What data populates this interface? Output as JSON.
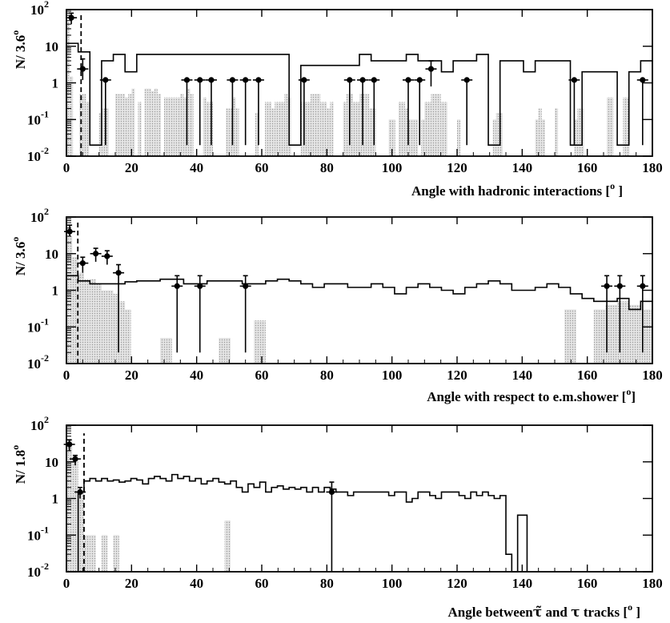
{
  "chart_data": [
    {
      "type": "histogram",
      "panel": "top",
      "ylabel": "N/ 3.6",
      "ylabel_superscript": "o",
      "xlabel": "Angle with hadronic interactions [",
      "xlabel_superscript": "o",
      "xlabel_end": " ]",
      "xlim": [
        0,
        180
      ],
      "ylim": [
        0.01,
        100
      ],
      "yscale": "log",
      "xticks": [
        "0",
        "20",
        "40",
        "60",
        "80",
        "100",
        "120",
        "140",
        "160",
        "180"
      ],
      "yticks": [
        {
          "base": "10",
          "exp": "-2",
          "value": 0.01
        },
        {
          "base": "10",
          "exp": "-1",
          "value": 0.1
        },
        {
          "base": "1",
          "exp": "",
          "value": 1
        },
        {
          "base": "10",
          "exp": "",
          "value": 10
        },
        {
          "base": "10",
          "exp": "2",
          "value": 100
        }
      ],
      "bin_width": 3.6,
      "cut_line_x": 4.5,
      "cut_line_top": 80,
      "series": [
        {
          "role": "shaded histogram",
          "values": [
            45,
            1.5,
            0,
            0,
            0.5,
            0.5,
            0.3,
            0,
            0,
            0,
            0.15,
            0.2,
            0.2,
            0,
            0,
            0.5,
            0.5,
            0.5,
            0.4,
            0.5,
            0.7,
            0,
            0.3,
            0,
            0.7,
            0.7,
            0.6,
            0.7,
            0.5,
            0,
            0.4,
            0.4,
            0.4,
            0.4,
            0.4,
            0.5,
            0.4,
            0.7,
            0.5,
            0,
            0,
            0,
            0.4,
            0.3,
            0.3,
            0,
            0,
            0,
            0,
            0.2,
            0.2,
            0.4,
            0.2,
            0,
            0,
            0,
            0,
            0,
            0.15,
            0,
            0,
            0.3,
            0.3,
            0.2,
            0.3,
            0.3,
            0.3,
            0.5,
            0.4,
            0,
            0,
            0,
            0.3,
            0.3,
            0.3,
            0.5,
            0.5,
            0.5,
            0.3,
            0.3,
            0.2,
            0.3,
            0,
            0,
            0,
            0.3,
            0.5,
            0.5,
            0.3,
            0.3,
            0.5,
            0.5,
            0.5,
            0.2,
            0.2,
            0,
            0,
            0,
            0,
            0.1,
            0.1,
            0,
            0.3,
            0.3,
            0.2,
            0.1,
            0.1,
            0.1,
            0,
            0.1,
            0.3,
            0.3,
            0.5,
            0.5,
            0.5,
            0.3,
            0.3,
            0,
            0,
            0,
            0.1,
            0,
            0,
            0,
            0,
            0,
            0,
            0,
            0,
            0,
            0,
            0.1,
            0.15,
            0.15,
            0,
            0,
            0,
            0,
            0,
            0,
            0,
            0,
            0,
            0,
            0.1,
            0.2,
            0.1,
            0,
            0,
            0,
            0.2,
            0,
            0,
            0,
            0,
            0,
            0.1,
            0.2,
            0.2,
            0,
            0,
            0,
            0,
            0,
            0,
            0,
            0.4,
            0.4,
            0,
            0,
            0,
            0.4,
            0.4,
            0,
            0,
            0
          ]
        },
        {
          "role": "outline histogram",
          "x": [
            0,
            3.6,
            7.2,
            10.8,
            14.4,
            18,
            21.6,
            25.2,
            28.8,
            32.4,
            36,
            39.6,
            43.2,
            46.8,
            50.4,
            54,
            57.6,
            61.2,
            64.8,
            68.4,
            72,
            75.6,
            79.2,
            82.8,
            86.4,
            90,
            93.6,
            97.2,
            100.8,
            104.4,
            108,
            111.6,
            115.2,
            118.8,
            122.4,
            126,
            129.6,
            133.2,
            136.8,
            140.4,
            144,
            147.6,
            151.2,
            154.8,
            158.4,
            162,
            165.6,
            169.2,
            172.8,
            176.4
          ],
          "values": [
            12,
            7,
            0.02,
            4,
            6,
            2,
            6,
            6,
            6,
            6,
            6,
            6,
            6,
            6,
            6,
            6,
            6,
            6,
            6,
            0.02,
            3,
            3,
            3,
            3,
            3,
            6,
            4,
            4,
            4,
            6,
            4,
            4,
            2,
            4,
            4,
            6,
            0.02,
            4,
            4,
            2,
            4,
            4,
            4,
            0.02,
            2,
            2,
            2,
            0.02,
            2,
            4
          ]
        },
        {
          "role": "data points",
          "x": [
            1.5,
            5,
            12,
            37,
            41,
            44.5,
            51,
            55,
            59,
            73,
            87,
            91,
            94.5,
            105,
            108.5,
            112,
            123,
            156,
            177
          ],
          "y": [
            60,
            2.4,
            1.2,
            1.2,
            1.2,
            1.2,
            1.2,
            1.2,
            1.2,
            1.2,
            1.2,
            1.2,
            1.2,
            1.2,
            1.2,
            2.4,
            1.2,
            1.2,
            1.2
          ],
          "y_low": [
            40,
            1.2,
            0.02,
            0.02,
            0.02,
            0.02,
            0.02,
            0.02,
            0.02,
            0.02,
            0.02,
            0.02,
            0.02,
            0.02,
            0.02,
            0.8,
            0.02,
            0.02,
            0.02
          ],
          "y_high": [
            80,
            4.5,
            1.2,
            1.2,
            1.2,
            1.2,
            1.2,
            1.2,
            1.2,
            1.2,
            1.2,
            1.2,
            1.2,
            1.2,
            1.2,
            4,
            1.2,
            1.2,
            1.2
          ]
        }
      ]
    },
    {
      "type": "histogram",
      "panel": "middle",
      "ylabel": "N/ 3.6",
      "ylabel_superscript": "o",
      "xlabel": "Angle with  respect to e.m.shower [",
      "xlabel_superscript": "o",
      "xlabel_end": "]",
      "xlim": [
        0,
        180
      ],
      "ylim": [
        0.01,
        100
      ],
      "yscale": "log",
      "xticks": [
        "0",
        "20",
        "40",
        "60",
        "80",
        "100",
        "120",
        "140",
        "160",
        "180"
      ],
      "yticks": [
        {
          "base": "10",
          "exp": "-2",
          "value": 0.01
        },
        {
          "base": "10",
          "exp": "-1",
          "value": 0.1
        },
        {
          "base": "1",
          "exp": "",
          "value": 1
        },
        {
          "base": "10",
          "exp": "",
          "value": 10
        },
        {
          "base": "10",
          "exp": "2",
          "value": 100
        }
      ],
      "bin_width": 3.6,
      "cut_line_x": 3.5,
      "cut_line_top": 80,
      "series": [
        {
          "role": "shaded histogram",
          "x": [
            0,
            1.8,
            3.6,
            5.4,
            7.2,
            9,
            10.8,
            12.6,
            14.4,
            16.2,
            18,
            28.8,
            46.8,
            57.6,
            153,
            162,
            165.6,
            169.2,
            172.8,
            176.4
          ],
          "width": [
            1.8,
            1.8,
            1.8,
            1.8,
            1.8,
            1.8,
            1.8,
            1.8,
            1.8,
            1.8,
            1.8,
            3.6,
            3.6,
            3.6,
            3.6,
            3.6,
            3.6,
            3.6,
            3.6,
            3.6
          ],
          "values": [
            30,
            8,
            3,
            2,
            2,
            1.5,
            1,
            1,
            0.8,
            0.5,
            0.3,
            0.05,
            0.05,
            0.15,
            0.3,
            0.3,
            0.4,
            0.5,
            0.4,
            0.3
          ]
        },
        {
          "role": "outline histogram",
          "x": [
            0,
            3.6,
            7.2,
            10.8,
            14.4,
            18,
            21.6,
            25.2,
            28.8,
            32.4,
            36,
            39.6,
            43.2,
            46.8,
            50.4,
            54,
            57.6,
            61.2,
            64.8,
            68.4,
            72,
            75.6,
            79.2,
            82.8,
            86.4,
            90,
            93.6,
            97.2,
            100.8,
            104.4,
            108,
            111.6,
            115.2,
            118.8,
            122.4,
            126,
            129.6,
            133.2,
            136.8,
            140.4,
            144,
            147.6,
            151.2,
            154.8,
            158.4,
            162,
            165.6,
            169.2,
            172.8,
            176.4
          ],
          "values": [
            2.5,
            1.8,
            1.5,
            1.5,
            1.5,
            1.7,
            1.8,
            1.8,
            2,
            2,
            1.5,
            1.5,
            1.8,
            1.8,
            1.8,
            1.5,
            1.5,
            1.8,
            2,
            1.8,
            1.5,
            1.2,
            1.5,
            1.5,
            1.2,
            1.2,
            1.5,
            1.2,
            0.8,
            1.2,
            1.5,
            1.2,
            1,
            0.8,
            1.2,
            1.5,
            1.8,
            1.5,
            1,
            1,
            1.2,
            1.5,
            1.2,
            0.8,
            0.6,
            0.5,
            0.5,
            0.6,
            0.3,
            0.5
          ]
        },
        {
          "role": "data points",
          "x": [
            1,
            5,
            9,
            12.5,
            16,
            34,
            41,
            55,
            166,
            170,
            177
          ],
          "y": [
            40,
            5.5,
            10,
            8.5,
            3,
            1.3,
            1.3,
            1.3,
            1.3,
            1.3,
            1.3
          ],
          "y_low": [
            30,
            3,
            6,
            5,
            0.02,
            0.02,
            0.02,
            0.02,
            0.02,
            0.02,
            0.02
          ],
          "y_high": [
            60,
            8,
            14,
            12,
            5,
            2.5,
            2.5,
            2.5,
            2.5,
            2.5,
            2.5
          ]
        }
      ]
    },
    {
      "type": "histogram",
      "panel": "bottom",
      "ylabel": "N/ 1.8",
      "ylabel_superscript": "o",
      "xlabel": "Angle between",
      "xlabel_symbol_a": "τ̃",
      "xlabel_mid": " and ",
      "xlabel_symbol_b": "τ",
      "xlabel_tail": " tracks [",
      "xlabel_superscript": "o",
      "xlabel_end": " ]",
      "xlim": [
        0,
        180
      ],
      "ylim": [
        0.01,
        100
      ],
      "yscale": "log",
      "xticks": [
        "0",
        "20",
        "40",
        "60",
        "80",
        "100",
        "120",
        "140",
        "160",
        "180"
      ],
      "yticks": [
        {
          "base": "10",
          "exp": "-2",
          "value": 0.01
        },
        {
          "base": "10",
          "exp": "-1",
          "value": 0.1
        },
        {
          "base": "1",
          "exp": "",
          "value": 1
        },
        {
          "base": "10",
          "exp": "",
          "value": 10
        },
        {
          "base": "10",
          "exp": "2",
          "value": 100
        }
      ],
      "bin_width": 1.8,
      "cut_line_x": 5.4,
      "cut_line_top": 60,
      "series": [
        {
          "role": "shaded histogram",
          "x": [
            0,
            1.8,
            3.6,
            5.4,
            7.2,
            10.8,
            14.4,
            48.6
          ],
          "width": [
            1.8,
            1.8,
            1.8,
            1.8,
            1.8,
            1.8,
            1.8,
            1.8
          ],
          "values": [
            40,
            12,
            1.5,
            0.1,
            0.1,
            0.1,
            0.1,
            0.25
          ]
        },
        {
          "role": "outline histogram",
          "x_start": 3.6,
          "values": [
            1.5,
            3.0,
            3.5,
            3.0,
            3.5,
            3.0,
            3.2,
            2.8,
            3.0,
            3.5,
            3.2,
            2.5,
            3.5,
            4.0,
            3.5,
            3.0,
            4.5,
            3.5,
            4.0,
            3.0,
            3.5,
            2.5,
            3.0,
            3.5,
            2.8,
            2.5,
            3.0,
            2.0,
            1.5,
            2.5,
            2.0,
            2.8,
            1.5,
            2.0,
            2.2,
            1.8,
            2.0,
            1.8,
            2.0,
            1.5,
            2.0,
            1.5,
            2.0,
            1.8,
            1.5,
            1.5,
            1.2,
            1.5,
            1.5,
            1.5,
            1.5,
            1.5,
            1.5,
            1.2,
            1.5,
            1.5,
            0.8,
            1.0,
            1.5,
            1.5,
            1.2,
            1.0,
            1.5,
            1.5,
            1.5,
            1.2,
            1.0,
            1.5,
            1.2,
            1.5,
            1.2,
            1.0,
            1.2,
            0.03,
            0.01,
            0.35
          ],
          "step_x_override": {
            "start_index": 73,
            "x": [
              135,
              136.8,
              138.6,
              141.5
            ]
          }
        },
        {
          "role": "data points",
          "x": [
            0.9,
            2.7,
            4.2,
            81.5
          ],
          "y": [
            30,
            12,
            1.5,
            1.5
          ],
          "y_low": [
            20,
            8,
            1.0,
            0.01
          ],
          "y_high": [
            40,
            15,
            2.0,
            2.8
          ]
        }
      ]
    }
  ]
}
